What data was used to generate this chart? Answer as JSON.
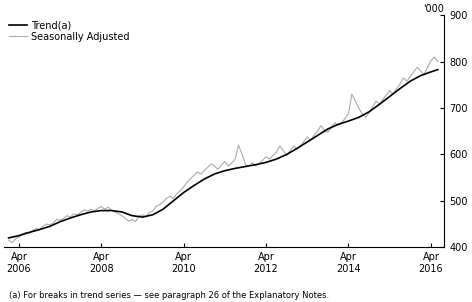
{
  "ylabel_right": "'000",
  "ylim": [
    400,
    900
  ],
  "yticks": [
    400,
    500,
    600,
    700,
    800,
    900
  ],
  "xtick_labels": [
    "Apr\n2006",
    "Apr\n2008",
    "Apr\n2010",
    "Apr\n2012",
    "Apr\n2014",
    "Apr\n2016"
  ],
  "xtick_positions": [
    2006.25,
    2008.25,
    2010.25,
    2012.25,
    2014.25,
    2016.25
  ],
  "legend_entries": [
    "Trend(a)",
    "Seasonally Adjusted"
  ],
  "trend_color": "#000000",
  "seasonal_color": "#aaaaaa",
  "footnote": "(a) For breaks in trend series — see paragraph 26 of the Explanatory Notes.",
  "trend_lw": 1.2,
  "seasonal_lw": 0.8,
  "background_color": "#ffffff",
  "trend_data": [
    [
      2006.0,
      420
    ],
    [
      2006.25,
      425
    ],
    [
      2006.5,
      432
    ],
    [
      2006.75,
      438
    ],
    [
      2007.0,
      445
    ],
    [
      2007.25,
      455
    ],
    [
      2007.5,
      463
    ],
    [
      2007.75,
      470
    ],
    [
      2008.0,
      476
    ],
    [
      2008.25,
      479
    ],
    [
      2008.5,
      479
    ],
    [
      2008.75,
      476
    ],
    [
      2009.0,
      468
    ],
    [
      2009.25,
      465
    ],
    [
      2009.5,
      470
    ],
    [
      2009.75,
      482
    ],
    [
      2010.0,
      500
    ],
    [
      2010.25,
      518
    ],
    [
      2010.5,
      533
    ],
    [
      2010.75,
      547
    ],
    [
      2011.0,
      558
    ],
    [
      2011.25,
      565
    ],
    [
      2011.5,
      570
    ],
    [
      2011.75,
      574
    ],
    [
      2012.0,
      578
    ],
    [
      2012.25,
      583
    ],
    [
      2012.5,
      590
    ],
    [
      2012.75,
      600
    ],
    [
      2013.0,
      613
    ],
    [
      2013.25,
      627
    ],
    [
      2013.5,
      641
    ],
    [
      2013.75,
      655
    ],
    [
      2014.0,
      665
    ],
    [
      2014.25,
      672
    ],
    [
      2014.5,
      680
    ],
    [
      2014.75,
      692
    ],
    [
      2015.0,
      708
    ],
    [
      2015.25,
      725
    ],
    [
      2015.5,
      742
    ],
    [
      2015.75,
      758
    ],
    [
      2016.0,
      770
    ],
    [
      2016.25,
      778
    ],
    [
      2016.42,
      783
    ]
  ],
  "seasonal_data": [
    [
      2006.0,
      415
    ],
    [
      2006.08,
      410
    ],
    [
      2006.17,
      418
    ],
    [
      2006.25,
      422
    ],
    [
      2006.33,
      428
    ],
    [
      2006.42,
      432
    ],
    [
      2006.5,
      430
    ],
    [
      2006.58,
      436
    ],
    [
      2006.67,
      440
    ],
    [
      2006.75,
      438
    ],
    [
      2006.83,
      445
    ],
    [
      2006.92,
      450
    ],
    [
      2007.0,
      448
    ],
    [
      2007.08,
      452
    ],
    [
      2007.17,
      460
    ],
    [
      2007.25,
      458
    ],
    [
      2007.33,
      462
    ],
    [
      2007.42,
      468
    ],
    [
      2007.5,
      465
    ],
    [
      2007.58,
      472
    ],
    [
      2007.67,
      470
    ],
    [
      2007.75,
      475
    ],
    [
      2007.83,
      480
    ],
    [
      2007.92,
      478
    ],
    [
      2008.0,
      482
    ],
    [
      2008.08,
      478
    ],
    [
      2008.17,
      484
    ],
    [
      2008.25,
      488
    ],
    [
      2008.33,
      482
    ],
    [
      2008.42,
      486
    ],
    [
      2008.5,
      480
    ],
    [
      2008.58,
      476
    ],
    [
      2008.67,
      472
    ],
    [
      2008.75,
      468
    ],
    [
      2008.83,
      462
    ],
    [
      2008.92,
      456
    ],
    [
      2009.0,
      460
    ],
    [
      2009.08,
      455
    ],
    [
      2009.17,
      468
    ],
    [
      2009.25,
      470
    ],
    [
      2009.33,
      465
    ],
    [
      2009.42,
      475
    ],
    [
      2009.5,
      478
    ],
    [
      2009.58,
      488
    ],
    [
      2009.67,
      492
    ],
    [
      2009.75,
      498
    ],
    [
      2009.83,
      505
    ],
    [
      2009.92,
      510
    ],
    [
      2010.0,
      505
    ],
    [
      2010.08,
      515
    ],
    [
      2010.17,
      522
    ],
    [
      2010.25,
      530
    ],
    [
      2010.33,
      540
    ],
    [
      2010.42,
      548
    ],
    [
      2010.5,
      555
    ],
    [
      2010.58,
      562
    ],
    [
      2010.67,
      558
    ],
    [
      2010.75,
      565
    ],
    [
      2010.83,
      572
    ],
    [
      2010.92,
      580
    ],
    [
      2011.0,
      575
    ],
    [
      2011.08,
      568
    ],
    [
      2011.17,
      578
    ],
    [
      2011.25,
      585
    ],
    [
      2011.33,
      575
    ],
    [
      2011.42,
      582
    ],
    [
      2011.5,
      590
    ],
    [
      2011.58,
      620
    ],
    [
      2011.67,
      600
    ],
    [
      2011.75,
      578
    ],
    [
      2011.83,
      575
    ],
    [
      2011.92,
      582
    ],
    [
      2012.0,
      575
    ],
    [
      2012.08,
      580
    ],
    [
      2012.17,
      588
    ],
    [
      2012.25,
      595
    ],
    [
      2012.33,
      590
    ],
    [
      2012.42,
      598
    ],
    [
      2012.5,
      605
    ],
    [
      2012.58,
      618
    ],
    [
      2012.67,
      608
    ],
    [
      2012.75,
      598
    ],
    [
      2012.83,
      608
    ],
    [
      2012.92,
      618
    ],
    [
      2013.0,
      612
    ],
    [
      2013.08,
      618
    ],
    [
      2013.17,
      628
    ],
    [
      2013.25,
      638
    ],
    [
      2013.33,
      630
    ],
    [
      2013.42,
      642
    ],
    [
      2013.5,
      650
    ],
    [
      2013.58,
      662
    ],
    [
      2013.67,
      652
    ],
    [
      2013.75,
      648
    ],
    [
      2013.83,
      658
    ],
    [
      2013.92,
      668
    ],
    [
      2014.0,
      662
    ],
    [
      2014.08,
      668
    ],
    [
      2014.17,
      678
    ],
    [
      2014.25,
      688
    ],
    [
      2014.33,
      730
    ],
    [
      2014.42,
      715
    ],
    [
      2014.5,
      700
    ],
    [
      2014.58,
      688
    ],
    [
      2014.67,
      680
    ],
    [
      2014.75,
      690
    ],
    [
      2014.83,
      702
    ],
    [
      2014.92,
      715
    ],
    [
      2015.0,
      708
    ],
    [
      2015.08,
      718
    ],
    [
      2015.17,
      728
    ],
    [
      2015.25,
      738
    ],
    [
      2015.33,
      730
    ],
    [
      2015.42,
      742
    ],
    [
      2015.5,
      752
    ],
    [
      2015.58,
      765
    ],
    [
      2015.67,
      758
    ],
    [
      2015.75,
      768
    ],
    [
      2015.83,
      778
    ],
    [
      2015.92,
      788
    ],
    [
      2016.0,
      780
    ],
    [
      2016.08,
      772
    ],
    [
      2016.17,
      788
    ],
    [
      2016.25,
      802
    ],
    [
      2016.33,
      810
    ],
    [
      2016.42,
      800
    ]
  ]
}
